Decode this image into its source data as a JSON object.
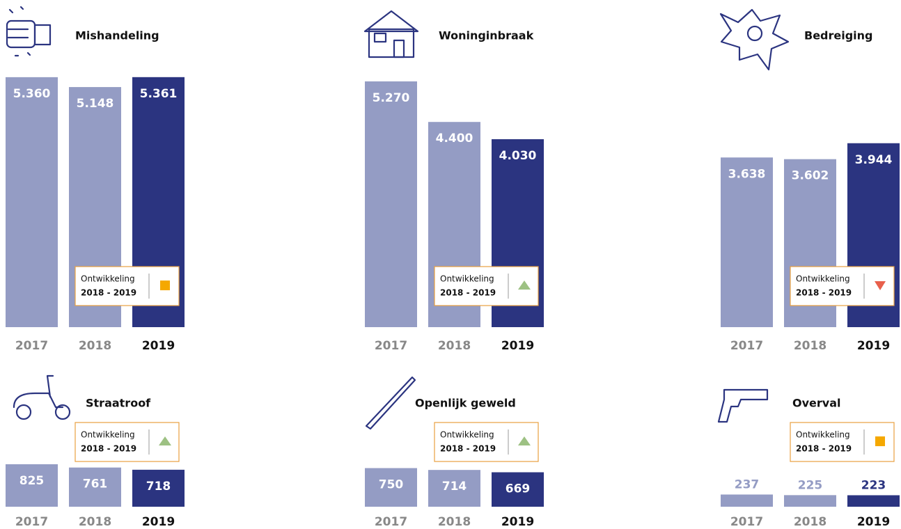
{
  "chart_data": [
    {
      "type": "bar",
      "title": "Mishandeling",
      "categories": [
        "2017",
        "2018",
        "2019"
      ],
      "values": [
        5360,
        5148,
        5361
      ],
      "value_labels": [
        "5.360",
        "5.148",
        "5.361"
      ],
      "colors": [
        "#949cc4",
        "#949cc4",
        "#2b3480"
      ],
      "development_label": "Ontwikkeling",
      "development_period": "2018 - 2019",
      "development": "stable"
    },
    {
      "type": "bar",
      "title": "Woninginbraak",
      "categories": [
        "2017",
        "2018",
        "2019"
      ],
      "values": [
        5270,
        4400,
        4030
      ],
      "value_labels": [
        "5.270",
        "4.400",
        "4.030"
      ],
      "colors": [
        "#949cc4",
        "#949cc4",
        "#2b3480"
      ],
      "development_label": "Ontwikkeling",
      "development_period": "2018 - 2019",
      "development": "up"
    },
    {
      "type": "bar",
      "title": "Bedreiging",
      "categories": [
        "2017",
        "2018",
        "2019"
      ],
      "values": [
        3638,
        3602,
        3944
      ],
      "value_labels": [
        "3.638",
        "3.602",
        "3.944"
      ],
      "colors": [
        "#949cc4",
        "#949cc4",
        "#2b3480"
      ],
      "development_label": "Ontwikkeling",
      "development_period": "2018 - 2019",
      "development": "down"
    },
    {
      "type": "bar",
      "title": "Straatroof",
      "categories": [
        "2017",
        "2018",
        "2019"
      ],
      "values": [
        825,
        761,
        718
      ],
      "colors": [
        "#949cc4",
        "#949cc4",
        "#2b3480"
      ],
      "development_label": "Ontwikkeling",
      "development_period": "2018 - 2019",
      "development": "up"
    },
    {
      "type": "bar",
      "title": "Openlijk geweld",
      "categories": [
        "2017",
        "2018",
        "2019"
      ],
      "values": [
        750,
        714,
        669
      ],
      "colors": [
        "#949cc4",
        "#949cc4",
        "#2b3480"
      ],
      "development_label": "Ontwikkeling",
      "development_period": "2018 - 2019",
      "development": "up"
    },
    {
      "type": "bar",
      "title": "Overval",
      "categories": [
        "2017",
        "2018",
        "2019"
      ],
      "values": [
        237,
        225,
        223
      ],
      "colors": [
        "#949cc4",
        "#949cc4",
        "#2b3480"
      ],
      "development_label": "Ontwikkeling",
      "development_period": "2018 - 2019",
      "development": "stable"
    }
  ]
}
